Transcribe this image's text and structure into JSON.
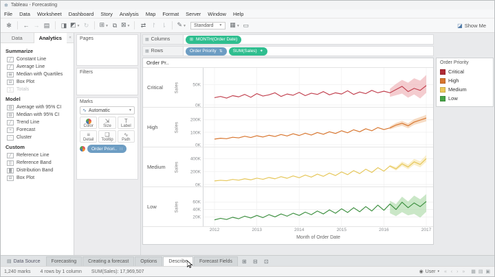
{
  "window": {
    "title": "Tableau - Forecasting"
  },
  "menu": {
    "items": [
      "File",
      "Data",
      "Worksheet",
      "Dashboard",
      "Story",
      "Analysis",
      "Map",
      "Format",
      "Server",
      "Window",
      "Help"
    ]
  },
  "toolbar": {
    "icons": [
      {
        "name": "tableau-logo-icon",
        "glyph": "✻"
      },
      {
        "name": "separator",
        "sep": true
      },
      {
        "name": "undo-icon",
        "glyph": "←"
      },
      {
        "name": "redo-icon",
        "glyph": "→",
        "disabled": true
      },
      {
        "name": "save-icon",
        "glyph": "▤"
      },
      {
        "name": "separator",
        "sep": true
      },
      {
        "name": "new-data-source-icon",
        "glyph": "◨"
      },
      {
        "name": "pause-auto-updates-icon",
        "glyph": "◩",
        "caret": true
      },
      {
        "name": "run-update-icon",
        "glyph": "↻",
        "disabled": true
      },
      {
        "name": "separator",
        "sep": true
      },
      {
        "name": "new-worksheet-icon",
        "glyph": "⊞",
        "caret": true
      },
      {
        "name": "duplicate-sheet-icon",
        "glyph": "⧉"
      },
      {
        "name": "clear-sheet-icon",
        "glyph": "⊠",
        "caret": true
      },
      {
        "name": "separator",
        "sep": true
      },
      {
        "name": "swap-rows-columns-icon",
        "glyph": "⇄"
      },
      {
        "name": "sort-ascending-icon",
        "glyph": "↾",
        "disabled": true
      },
      {
        "name": "sort-descending-icon",
        "glyph": "⇂",
        "disabled": true
      },
      {
        "name": "separator",
        "sep": true
      },
      {
        "name": "highlight-icon",
        "glyph": "✎",
        "caret": true
      }
    ],
    "fit_label": "Standard",
    "after_fit_icons": [
      {
        "name": "show-hide-cards-icon",
        "glyph": "▦",
        "caret": true
      },
      {
        "name": "presentation-mode-icon",
        "glyph": "▭"
      }
    ],
    "show_me_label": "Show Me"
  },
  "left_panel": {
    "tabs": [
      {
        "label": "Data",
        "active": false
      },
      {
        "label": "Analytics",
        "active": true
      }
    ],
    "sections": [
      {
        "title": "Summarize",
        "items": [
          {
            "label": "Constant Line",
            "icon": "constant-line-icon",
            "glyph": "╱"
          },
          {
            "label": "Average Line",
            "icon": "average-line-icon",
            "glyph": "╱"
          },
          {
            "label": "Median with Quartiles",
            "icon": "median-quartiles-icon",
            "glyph": "▤"
          },
          {
            "label": "Box Plot",
            "icon": "box-plot-icon",
            "glyph": "⊟"
          },
          {
            "label": "Totals",
            "icon": "totals-icon",
            "glyph": "∑",
            "disabled": true
          }
        ]
      },
      {
        "title": "Model",
        "items": [
          {
            "label": "Average with 95% CI",
            "icon": "average-ci-icon",
            "glyph": "▥"
          },
          {
            "label": "Median with 95% CI",
            "icon": "median-ci-icon",
            "glyph": "▥"
          },
          {
            "label": "Trend Line",
            "icon": "trend-line-icon",
            "glyph": "╱"
          },
          {
            "label": "Forecast",
            "icon": "forecast-icon",
            "glyph": "≈"
          },
          {
            "label": "Cluster",
            "icon": "cluster-icon",
            "glyph": "∴"
          }
        ]
      },
      {
        "title": "Custom",
        "items": [
          {
            "label": "Reference Line",
            "icon": "reference-line-icon",
            "glyph": "╱"
          },
          {
            "label": "Reference Band",
            "icon": "reference-band-icon",
            "glyph": "▒"
          },
          {
            "label": "Distribution Band",
            "icon": "distribution-band-icon",
            "glyph": "▓"
          },
          {
            "label": "Box Plot",
            "icon": "box-plot-icon",
            "glyph": "⊟"
          }
        ]
      }
    ]
  },
  "cards": {
    "pages_label": "Pages",
    "filters_label": "Filters",
    "marks_label": "Marks",
    "mark_type": "Automatic",
    "mark_buttons": [
      {
        "label": "Color",
        "icon": "color-icon",
        "glyph": "dots"
      },
      {
        "label": "Size",
        "icon": "size-icon",
        "glyph": "⇲"
      },
      {
        "label": "Label",
        "icon": "label-icon",
        "glyph": "T"
      },
      {
        "label": "Detail",
        "icon": "detail-icon",
        "glyph": "≡"
      },
      {
        "label": "Tooltip",
        "icon": "tooltip-icon",
        "glyph": "❑"
      },
      {
        "label": "Path",
        "icon": "path-icon",
        "glyph": "∿"
      }
    ],
    "marks_pill": {
      "label": "Order Priori..",
      "type": "blue",
      "icon_glyph": "∷"
    }
  },
  "shelves": {
    "columns_label": "Columns",
    "rows_label": "Rows",
    "columns_pills": [
      {
        "label": "MONTH(Order Date)",
        "type": "green",
        "left_glyph": "⊞"
      }
    ],
    "rows_pills": [
      {
        "label": "Order Priority",
        "type": "blue",
        "right_glyph": "⇅"
      },
      {
        "label": "SUM(Sales)",
        "type": "green",
        "right_glyph": "✦"
      }
    ]
  },
  "legend": {
    "title": "Order Priority",
    "items": [
      {
        "label": "Critical",
        "color": "#b12b35"
      },
      {
        "label": "High",
        "color": "#d8762f"
      },
      {
        "label": "Medium",
        "color": "#edc959"
      },
      {
        "label": "Low",
        "color": "#47a447"
      }
    ]
  },
  "chart_data": {
    "type": "line",
    "title": "Order Pr..",
    "x_label": "Month of Order Date",
    "x_ticks": [
      "2012",
      "2013",
      "2014",
      "2015",
      "2016",
      "2017"
    ],
    "y_label": "Sales",
    "unit": "K",
    "forecast_start_index": 29,
    "panes": [
      {
        "category": "Critical",
        "line_color": "#c24250",
        "band_color": "#eeb0b6",
        "ymax": 80,
        "y_ticks": [
          {
            "label": "50K",
            "value": 50
          },
          {
            "label": "0K",
            "value": 0
          }
        ],
        "values": [
          18,
          21,
          17,
          23,
          20,
          26,
          19,
          28,
          22,
          25,
          30,
          21,
          27,
          24,
          31,
          23,
          29,
          26,
          33,
          25,
          30,
          27,
          35,
          26,
          32,
          28,
          36,
          30,
          34,
          30,
          38,
          46,
          33,
          41,
          36,
          48
        ],
        "forecast_upper": [
          40,
          52,
          62,
          55,
          66,
          60,
          74
        ],
        "forecast_lower": [
          20,
          24,
          28,
          18,
          26,
          16,
          30
        ]
      },
      {
        "category": "High",
        "line_color": "#d8762f",
        "band_color": "#f3c9a4",
        "ymax": 260,
        "y_ticks": [
          {
            "label": "200K",
            "value": 200
          },
          {
            "label": "100K",
            "value": 100
          },
          {
            "label": "0K",
            "value": 0
          }
        ],
        "values": [
          45,
          52,
          48,
          60,
          55,
          68,
          58,
          72,
          62,
          76,
          66,
          82,
          70,
          88,
          74,
          92,
          78,
          98,
          84,
          104,
          90,
          112,
          96,
          120,
          104,
          128,
          112,
          138,
          122,
          135,
          158,
          172,
          152,
          182,
          198,
          214
        ],
        "forecast_upper": [
          148,
          175,
          192,
          172,
          205,
          222,
          240
        ],
        "forecast_lower": [
          122,
          140,
          152,
          132,
          160,
          174,
          188
        ]
      },
      {
        "category": "Medium",
        "line_color": "#e6c75a",
        "band_color": "#f7e7af",
        "ymax": 500,
        "y_ticks": [
          {
            "label": "400K",
            "value": 400
          },
          {
            "label": "200K",
            "value": 200
          },
          {
            "label": "0K",
            "value": 0
          }
        ],
        "values": [
          55,
          65,
          58,
          78,
          66,
          88,
          72,
          98,
          80,
          108,
          88,
          120,
          96,
          132,
          104,
          146,
          114,
          160,
          126,
          176,
          138,
          194,
          152,
          214,
          168,
          236,
          186,
          260,
          206,
          286,
          240,
          320,
          270,
          350,
          310,
          400
        ],
        "forecast_upper": [
          300,
          270,
          355,
          310,
          395,
          360,
          455
        ],
        "forecast_lower": [
          266,
          215,
          285,
          235,
          305,
          265,
          350
        ]
      },
      {
        "category": "Low",
        "line_color": "#3f9142",
        "band_color": "#aedaa9",
        "ymax": 88,
        "y_ticks": [
          {
            "label": "60K",
            "value": 60
          },
          {
            "label": "40K",
            "value": 40
          },
          {
            "label": "20K",
            "value": 20
          }
        ],
        "values": [
          12,
          16,
          13,
          19,
          15,
          22,
          17,
          24,
          18,
          26,
          20,
          28,
          22,
          30,
          24,
          33,
          26,
          36,
          28,
          39,
          30,
          42,
          32,
          45,
          34,
          48,
          36,
          52,
          38,
          55,
          40,
          60,
          45,
          58,
          48,
          62
        ],
        "forecast_upper": [
          64,
          55,
          75,
          62,
          78,
          68,
          82
        ],
        "forecast_lower": [
          30,
          22,
          33,
          24,
          28,
          18,
          34
        ]
      }
    ]
  },
  "sheet_tabs": {
    "data_source_label": "Data Source",
    "tabs": [
      {
        "label": "Forecasting"
      },
      {
        "label": "Creating a forecast"
      },
      {
        "label": "Options"
      },
      {
        "label": "Describe",
        "hover": true,
        "cursor": true
      },
      {
        "label": "Forecast Fields"
      }
    ],
    "new_buttons": [
      {
        "name": "new-worksheet-button",
        "glyph": "⊞"
      },
      {
        "name": "new-dashboard-button",
        "glyph": "⊟"
      },
      {
        "name": "new-story-button",
        "glyph": "⊡"
      }
    ]
  },
  "status_bar": {
    "segments": [
      "1,240 marks",
      "4 rows by 1 column",
      "SUM(Sales): 17,969,507"
    ],
    "user_label": "User",
    "nav_glyphs": "« ‹ › »",
    "view_glyphs": "▦ ▤ ▣"
  }
}
